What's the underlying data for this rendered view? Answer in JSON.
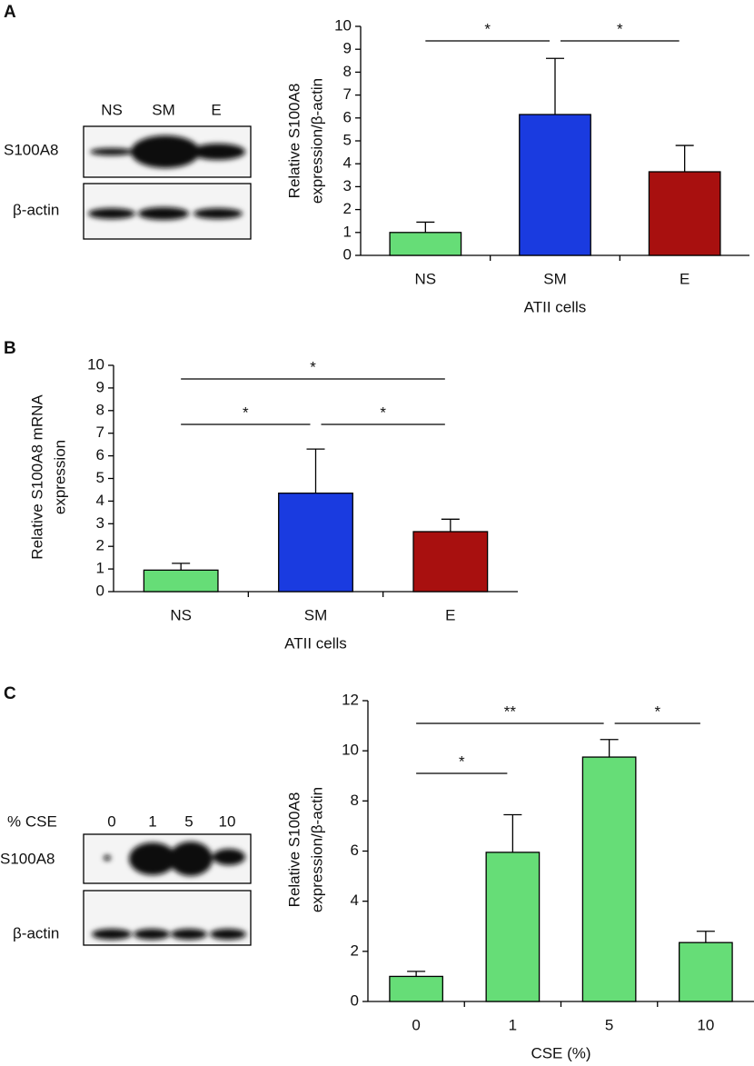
{
  "panels": {
    "labels": [
      "A",
      "B",
      "C"
    ]
  },
  "blots": [
    {
      "lanes": [
        "NS",
        "SM",
        "E"
      ],
      "rows": [
        "S100A8",
        "β-actin"
      ]
    },
    {
      "lanes_title": "% CSE",
      "lanes": [
        "0",
        "1",
        "5",
        "10"
      ],
      "rows": [
        "S100A8",
        "β-actin"
      ]
    }
  ],
  "chart_data": [
    {
      "type": "bar",
      "y_label": [
        "Relative S100A8",
        "expression/β-actin"
      ],
      "x_label": "ATII cells",
      "categories": [
        "NS",
        "SM",
        "E"
      ],
      "values": [
        1.0,
        6.15,
        3.65
      ],
      "errors": [
        0.45,
        2.45,
        1.15
      ],
      "colors": [
        "#66dd77",
        "#1a3be0",
        "#a8100f"
      ],
      "ylim": [
        0,
        10
      ],
      "yticks": [
        0,
        1,
        2,
        3,
        4,
        5,
        6,
        7,
        8,
        9,
        10
      ],
      "annotations": [
        {
          "text": "*",
          "between": [
            "NS",
            "SM"
          ]
        },
        {
          "text": "*",
          "between": [
            "SM",
            "E"
          ]
        }
      ]
    },
    {
      "type": "bar",
      "y_label": [
        "Relative S100A8 mRNA",
        "expression"
      ],
      "x_label": "ATII cells",
      "categories": [
        "NS",
        "SM",
        "E"
      ],
      "values": [
        0.95,
        4.35,
        2.65
      ],
      "errors": [
        0.3,
        1.95,
        0.55
      ],
      "colors": [
        "#66dd77",
        "#1a3be0",
        "#a8100f"
      ],
      "ylim": [
        0,
        10
      ],
      "yticks": [
        0,
        1,
        2,
        3,
        4,
        5,
        6,
        7,
        8,
        9,
        10
      ],
      "annotations": [
        {
          "text": "*",
          "between": [
            "NS",
            "E"
          ]
        },
        {
          "text": "*",
          "between": [
            "NS",
            "SM"
          ]
        },
        {
          "text": "*",
          "between": [
            "SM",
            "E"
          ]
        }
      ]
    },
    {
      "type": "bar",
      "y_label": [
        "Relative S100A8",
        "expression/β-actin"
      ],
      "x_label": "CSE (%)",
      "categories": [
        "0",
        "1",
        "5",
        "10"
      ],
      "values": [
        1.0,
        5.95,
        9.75,
        2.35
      ],
      "errors": [
        0.2,
        1.5,
        0.7,
        0.45
      ],
      "colors": [
        "#66dd77",
        "#66dd77",
        "#66dd77",
        "#66dd77"
      ],
      "ylim": [
        0,
        12
      ],
      "yticks": [
        0,
        2,
        4,
        6,
        8,
        10,
        12
      ],
      "annotations": [
        {
          "text": "*",
          "between": [
            "0",
            "1"
          ]
        },
        {
          "text": "**",
          "between": [
            "0",
            "5"
          ]
        },
        {
          "text": "*",
          "between": [
            "5",
            "10"
          ]
        }
      ]
    }
  ]
}
